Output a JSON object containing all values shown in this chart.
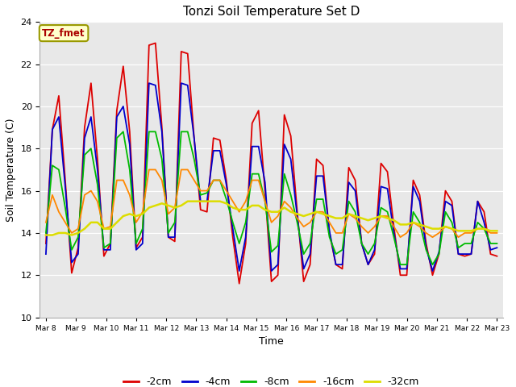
{
  "title": "Tonzi Soil Temperature Set D",
  "xlabel": "Time",
  "ylabel": "Soil Temperature (C)",
  "ylim": [
    10,
    24
  ],
  "yticks": [
    10,
    12,
    14,
    16,
    18,
    20,
    22,
    24
  ],
  "annotation_text": "TZ_fmet",
  "annotation_bg": "#ffffcc",
  "annotation_border": "#999900",
  "annotation_text_color": "#aa0000",
  "fig_bg": "#ffffff",
  "plot_bg": "#e8e8e8",
  "series": {
    "-2cm": {
      "color": "#dd0000",
      "lw": 1.3,
      "values": [
        13.5,
        18.9,
        20.5,
        16.5,
        12.1,
        13.3,
        19.0,
        21.1,
        17.5,
        12.9,
        13.5,
        19.8,
        21.9,
        18.8,
        13.3,
        13.8,
        22.9,
        23.0,
        19.0,
        13.8,
        13.6,
        22.6,
        22.5,
        18.5,
        15.1,
        15.0,
        18.5,
        18.4,
        16.5,
        13.8,
        11.6,
        13.5,
        19.2,
        19.8,
        16.0,
        11.7,
        12.0,
        19.6,
        18.6,
        15.0,
        11.7,
        12.5,
        17.5,
        17.2,
        14.0,
        12.5,
        12.3,
        17.1,
        16.5,
        13.5,
        12.5,
        13.0,
        17.3,
        16.9,
        14.3,
        12.0,
        12.0,
        16.5,
        15.8,
        13.5,
        12.0,
        13.0,
        16.0,
        15.5,
        13.0,
        12.9,
        13.0,
        15.5,
        15.0,
        13.0,
        12.9
      ]
    },
    "-4cm": {
      "color": "#0000cc",
      "lw": 1.3,
      "values": [
        13.0,
        18.9,
        19.5,
        16.2,
        12.6,
        13.0,
        18.5,
        19.5,
        17.0,
        13.2,
        13.2,
        19.5,
        20.0,
        18.2,
        13.2,
        13.5,
        21.1,
        21.0,
        18.8,
        13.8,
        13.8,
        21.1,
        21.0,
        18.5,
        15.5,
        15.5,
        17.9,
        17.9,
        16.3,
        14.2,
        12.2,
        13.8,
        18.1,
        18.1,
        16.4,
        12.2,
        12.5,
        18.2,
        17.5,
        14.8,
        12.3,
        13.0,
        16.7,
        16.7,
        14.1,
        12.5,
        12.5,
        16.4,
        16.0,
        13.5,
        12.5,
        13.2,
        16.2,
        16.1,
        14.0,
        12.3,
        12.3,
        16.2,
        15.5,
        13.3,
        12.2,
        13.1,
        15.5,
        15.3,
        13.0,
        13.0,
        13.0,
        15.5,
        14.5,
        13.2,
        13.3
      ]
    },
    "-8cm": {
      "color": "#00bb00",
      "lw": 1.3,
      "values": [
        14.0,
        17.2,
        17.0,
        15.2,
        13.2,
        13.8,
        17.7,
        18.0,
        16.3,
        13.3,
        13.5,
        18.5,
        18.8,
        17.0,
        13.5,
        14.2,
        18.8,
        18.8,
        17.5,
        14.0,
        14.5,
        18.8,
        18.8,
        17.5,
        15.8,
        15.9,
        16.5,
        16.5,
        15.6,
        14.5,
        13.5,
        14.5,
        16.8,
        16.8,
        15.5,
        13.1,
        13.4,
        16.8,
        15.8,
        14.5,
        13.0,
        13.5,
        15.6,
        15.6,
        13.8,
        13.0,
        13.2,
        15.5,
        15.0,
        13.5,
        13.0,
        13.5,
        15.2,
        15.0,
        13.8,
        12.5,
        12.5,
        15.0,
        14.5,
        13.2,
        12.5,
        13.0,
        15.0,
        14.5,
        13.3,
        13.5,
        13.5,
        14.5,
        14.2,
        13.5,
        13.5
      ]
    },
    "-16cm": {
      "color": "#ff8800",
      "lw": 1.3,
      "values": [
        14.5,
        15.8,
        15.0,
        14.5,
        14.0,
        14.2,
        15.8,
        16.0,
        15.5,
        14.2,
        14.3,
        16.5,
        16.5,
        15.8,
        14.5,
        15.0,
        17.0,
        17.0,
        16.5,
        14.9,
        15.2,
        17.0,
        17.0,
        16.5,
        16.0,
        16.0,
        16.5,
        16.5,
        16.0,
        15.5,
        15.0,
        15.5,
        16.5,
        16.5,
        15.5,
        14.5,
        14.8,
        15.5,
        15.2,
        14.7,
        14.3,
        14.5,
        15.0,
        15.0,
        14.5,
        14.0,
        14.0,
        14.9,
        14.7,
        14.3,
        14.0,
        14.3,
        14.8,
        14.8,
        14.3,
        13.8,
        14.0,
        14.5,
        14.3,
        14.0,
        13.8,
        14.0,
        14.3,
        14.2,
        13.8,
        14.0,
        14.0,
        14.2,
        14.2,
        14.0,
        14.0
      ]
    },
    "-32cm": {
      "color": "#dddd00",
      "lw": 1.8,
      "values": [
        13.9,
        13.9,
        14.0,
        14.0,
        13.9,
        14.0,
        14.2,
        14.5,
        14.5,
        14.2,
        14.2,
        14.5,
        14.8,
        14.9,
        14.8,
        14.9,
        15.2,
        15.3,
        15.4,
        15.3,
        15.2,
        15.3,
        15.5,
        15.5,
        15.5,
        15.5,
        15.5,
        15.5,
        15.4,
        15.2,
        15.1,
        15.1,
        15.3,
        15.3,
        15.1,
        15.0,
        15.0,
        15.2,
        15.0,
        14.9,
        14.8,
        14.9,
        15.0,
        14.9,
        14.8,
        14.7,
        14.7,
        14.9,
        14.8,
        14.7,
        14.6,
        14.7,
        14.8,
        14.7,
        14.6,
        14.4,
        14.4,
        14.5,
        14.4,
        14.3,
        14.2,
        14.2,
        14.3,
        14.2,
        14.1,
        14.1,
        14.1,
        14.2,
        14.2,
        14.1,
        14.1
      ]
    }
  },
  "x_tick_labels": [
    "Mar 8",
    "Mar 9",
    "Mar 10",
    "Mar 11",
    "Mar 12",
    "Mar 13",
    "Mar 14",
    "Mar 15",
    "Mar 16",
    "Mar 17",
    "Mar 18",
    "Mar 19",
    "Mar 20",
    "Mar 21",
    "Mar 22",
    "Mar 23"
  ],
  "legend_entries": [
    {
      "label": "-2cm",
      "color": "#dd0000"
    },
    {
      "label": "-4cm",
      "color": "#0000cc"
    },
    {
      "label": "-8cm",
      "color": "#00bb00"
    },
    {
      "label": "-16cm",
      "color": "#ff8800"
    },
    {
      "label": "-32cm",
      "color": "#dddd00"
    }
  ]
}
